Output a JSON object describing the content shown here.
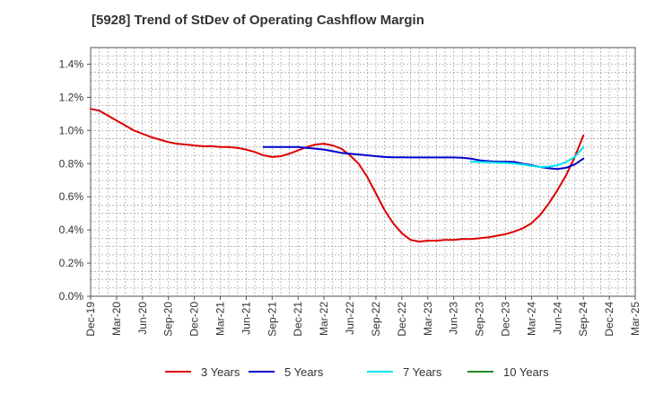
{
  "chart_data": {
    "type": "line",
    "title": "[5928]  Trend of StDev of Operating Cashflow Margin",
    "xlabel": "",
    "ylabel": "",
    "x_ticks": [
      "Dec-19",
      "Mar-20",
      "Jun-20",
      "Sep-20",
      "Dec-20",
      "Mar-21",
      "Jun-21",
      "Sep-21",
      "Dec-21",
      "Mar-22",
      "Jun-22",
      "Sep-22",
      "Dec-22",
      "Mar-23",
      "Jun-23",
      "Sep-23",
      "Dec-23",
      "Mar-24",
      "Jun-24",
      "Sep-24",
      "Dec-24",
      "Mar-25"
    ],
    "y_ticks": [
      "0.0%",
      "0.2%",
      "0.4%",
      "0.6%",
      "0.8%",
      "1.0%",
      "1.2%",
      "1.4%"
    ],
    "ylim": [
      0,
      1.5
    ],
    "grid": true,
    "legend_position": "bottom",
    "series": [
      {
        "name": "3 Years",
        "color": "#dd0000",
        "points": [
          [
            "Dec-19",
            1.13
          ],
          [
            "Jan-20",
            1.12
          ],
          [
            "Feb-20",
            1.09
          ],
          [
            "Mar-20",
            1.06
          ],
          [
            "Apr-20",
            1.03
          ],
          [
            "May-20",
            1.0
          ],
          [
            "Jun-20",
            0.98
          ],
          [
            "Jul-20",
            0.96
          ],
          [
            "Aug-20",
            0.945
          ],
          [
            "Sep-20",
            0.93
          ],
          [
            "Oct-20",
            0.92
          ],
          [
            "Nov-20",
            0.915
          ],
          [
            "Dec-20",
            0.91
          ],
          [
            "Jan-21",
            0.905
          ],
          [
            "Feb-21",
            0.905
          ],
          [
            "Mar-21",
            0.9
          ],
          [
            "Apr-21",
            0.9
          ],
          [
            "May-21",
            0.895
          ],
          [
            "Jun-21",
            0.885
          ],
          [
            "Jul-21",
            0.87
          ],
          [
            "Aug-21",
            0.85
          ],
          [
            "Sep-21",
            0.84
          ],
          [
            "Oct-21",
            0.845
          ],
          [
            "Nov-21",
            0.86
          ],
          [
            "Dec-21",
            0.88
          ],
          [
            "Jan-22",
            0.9
          ],
          [
            "Feb-22",
            0.915
          ],
          [
            "Mar-22",
            0.92
          ],
          [
            "Apr-22",
            0.91
          ],
          [
            "May-22",
            0.89
          ],
          [
            "Jun-22",
            0.85
          ],
          [
            "Jul-22",
            0.8
          ],
          [
            "Aug-22",
            0.72
          ],
          [
            "Sep-22",
            0.62
          ],
          [
            "Oct-22",
            0.52
          ],
          [
            "Nov-22",
            0.44
          ],
          [
            "Dec-22",
            0.38
          ],
          [
            "Jan-23",
            0.34
          ],
          [
            "Feb-23",
            0.33
          ],
          [
            "Mar-23",
            0.335
          ],
          [
            "Apr-23",
            0.335
          ],
          [
            "May-23",
            0.34
          ],
          [
            "Jun-23",
            0.34
          ],
          [
            "Jul-23",
            0.345
          ],
          [
            "Aug-23",
            0.345
          ],
          [
            "Sep-23",
            0.35
          ],
          [
            "Oct-23",
            0.355
          ],
          [
            "Nov-23",
            0.365
          ],
          [
            "Dec-23",
            0.375
          ],
          [
            "Jan-24",
            0.39
          ],
          [
            "Feb-24",
            0.41
          ],
          [
            "Mar-24",
            0.44
          ],
          [
            "Apr-24",
            0.49
          ],
          [
            "May-24",
            0.56
          ],
          [
            "Jun-24",
            0.64
          ],
          [
            "Jul-24",
            0.73
          ],
          [
            "Aug-24",
            0.84
          ],
          [
            "Sep-24",
            0.97
          ]
        ]
      },
      {
        "name": "5 Years",
        "color": "#0000cc",
        "points": [
          [
            "Aug-21",
            0.9
          ],
          [
            "Sep-21",
            0.9
          ],
          [
            "Oct-21",
            0.9
          ],
          [
            "Nov-21",
            0.9
          ],
          [
            "Dec-21",
            0.9
          ],
          [
            "Jan-22",
            0.895
          ],
          [
            "Feb-22",
            0.89
          ],
          [
            "Mar-22",
            0.885
          ],
          [
            "Apr-22",
            0.875
          ],
          [
            "May-22",
            0.865
          ],
          [
            "Jun-22",
            0.86
          ],
          [
            "Jul-22",
            0.855
          ],
          [
            "Aug-22",
            0.85
          ],
          [
            "Sep-22",
            0.845
          ],
          [
            "Oct-22",
            0.84
          ],
          [
            "Nov-22",
            0.838
          ],
          [
            "Dec-22",
            0.838
          ],
          [
            "Jan-23",
            0.837
          ],
          [
            "Feb-23",
            0.837
          ],
          [
            "Mar-23",
            0.837
          ],
          [
            "Apr-23",
            0.837
          ],
          [
            "May-23",
            0.837
          ],
          [
            "Jun-23",
            0.837
          ],
          [
            "Jul-23",
            0.835
          ],
          [
            "Aug-23",
            0.83
          ],
          [
            "Sep-23",
            0.82
          ],
          [
            "Oct-23",
            0.815
          ],
          [
            "Nov-23",
            0.812
          ],
          [
            "Dec-23",
            0.812
          ],
          [
            "Jan-24",
            0.81
          ],
          [
            "Feb-24",
            0.8
          ],
          [
            "Mar-24",
            0.79
          ],
          [
            "Apr-24",
            0.78
          ],
          [
            "May-24",
            0.772
          ],
          [
            "Jun-24",
            0.768
          ],
          [
            "Jul-24",
            0.775
          ],
          [
            "Aug-24",
            0.795
          ],
          [
            "Sep-24",
            0.83
          ]
        ]
      },
      {
        "name": "7 Years",
        "color": "#00e5ee",
        "points": [
          [
            "Aug-23",
            0.812
          ],
          [
            "Sep-23",
            0.81
          ],
          [
            "Oct-23",
            0.808
          ],
          [
            "Nov-23",
            0.806
          ],
          [
            "Dec-23",
            0.804
          ],
          [
            "Jan-24",
            0.8
          ],
          [
            "Feb-24",
            0.795
          ],
          [
            "Mar-24",
            0.787
          ],
          [
            "Apr-24",
            0.78
          ],
          [
            "May-24",
            0.782
          ],
          [
            "Jun-24",
            0.79
          ],
          [
            "Jul-24",
            0.81
          ],
          [
            "Aug-24",
            0.84
          ],
          [
            "Sep-24",
            0.9
          ]
        ]
      },
      {
        "name": "10 Years",
        "color": "#228b22",
        "points": []
      }
    ]
  }
}
